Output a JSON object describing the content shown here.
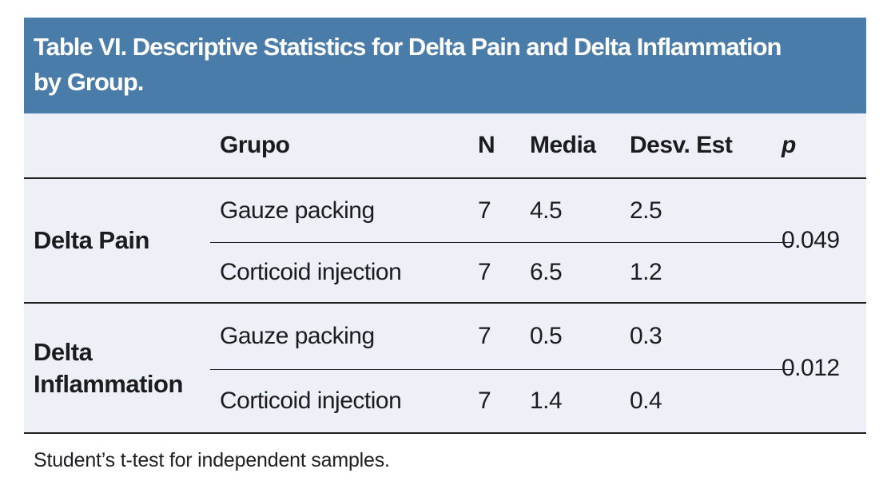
{
  "header": {
    "title": "Table VI. Descriptive Statistics for Delta Pain and Delta Inflammation by Group."
  },
  "columns": {
    "grupo": "Grupo",
    "n": "N",
    "media": "Media",
    "desv": "Desv. Est",
    "p": "p"
  },
  "sections": [
    {
      "label": "Delta Pain",
      "rows": [
        {
          "grupo": "Gauze packing",
          "n": "7",
          "media": "4.5",
          "desv": "2.5"
        },
        {
          "grupo": "Corticoid injection",
          "n": "7",
          "media": "6.5",
          "desv": "1.2"
        }
      ],
      "p": "0.049"
    },
    {
      "label": "Delta Inflammation",
      "rows": [
        {
          "grupo": "Gauze packing",
          "n": "7",
          "media": "0.5",
          "desv": "0.3"
        },
        {
          "grupo": "Corticoid injection",
          "n": "7",
          "media": "1.4",
          "desv": "0.4"
        }
      ],
      "p": "0.012"
    }
  ],
  "footnote": "Student’s t-test for independent samples.",
  "colors": {
    "header_bg": "#4a7caa",
    "body_bg": "#edf0f7",
    "line": "#1f1f1f"
  },
  "chart_data": {
    "type": "table",
    "title": "Table VI. Descriptive Statistics for Delta Pain and Delta Inflammation by Group.",
    "columns": [
      "",
      "Grupo",
      "N",
      "Media",
      "Desv. Est",
      "p"
    ],
    "rows": [
      [
        "Delta Pain",
        "Gauze packing",
        7,
        4.5,
        2.5,
        0.049
      ],
      [
        "Delta Pain",
        "Corticoid injection",
        7,
        6.5,
        1.2,
        0.049
      ],
      [
        "Delta Inflammation",
        "Gauze packing",
        7,
        0.5,
        0.3,
        0.012
      ],
      [
        "Delta Inflammation",
        "Corticoid injection",
        7,
        1.4,
        0.4,
        0.012
      ]
    ],
    "footnote": "Student’s t-test for independent samples."
  }
}
